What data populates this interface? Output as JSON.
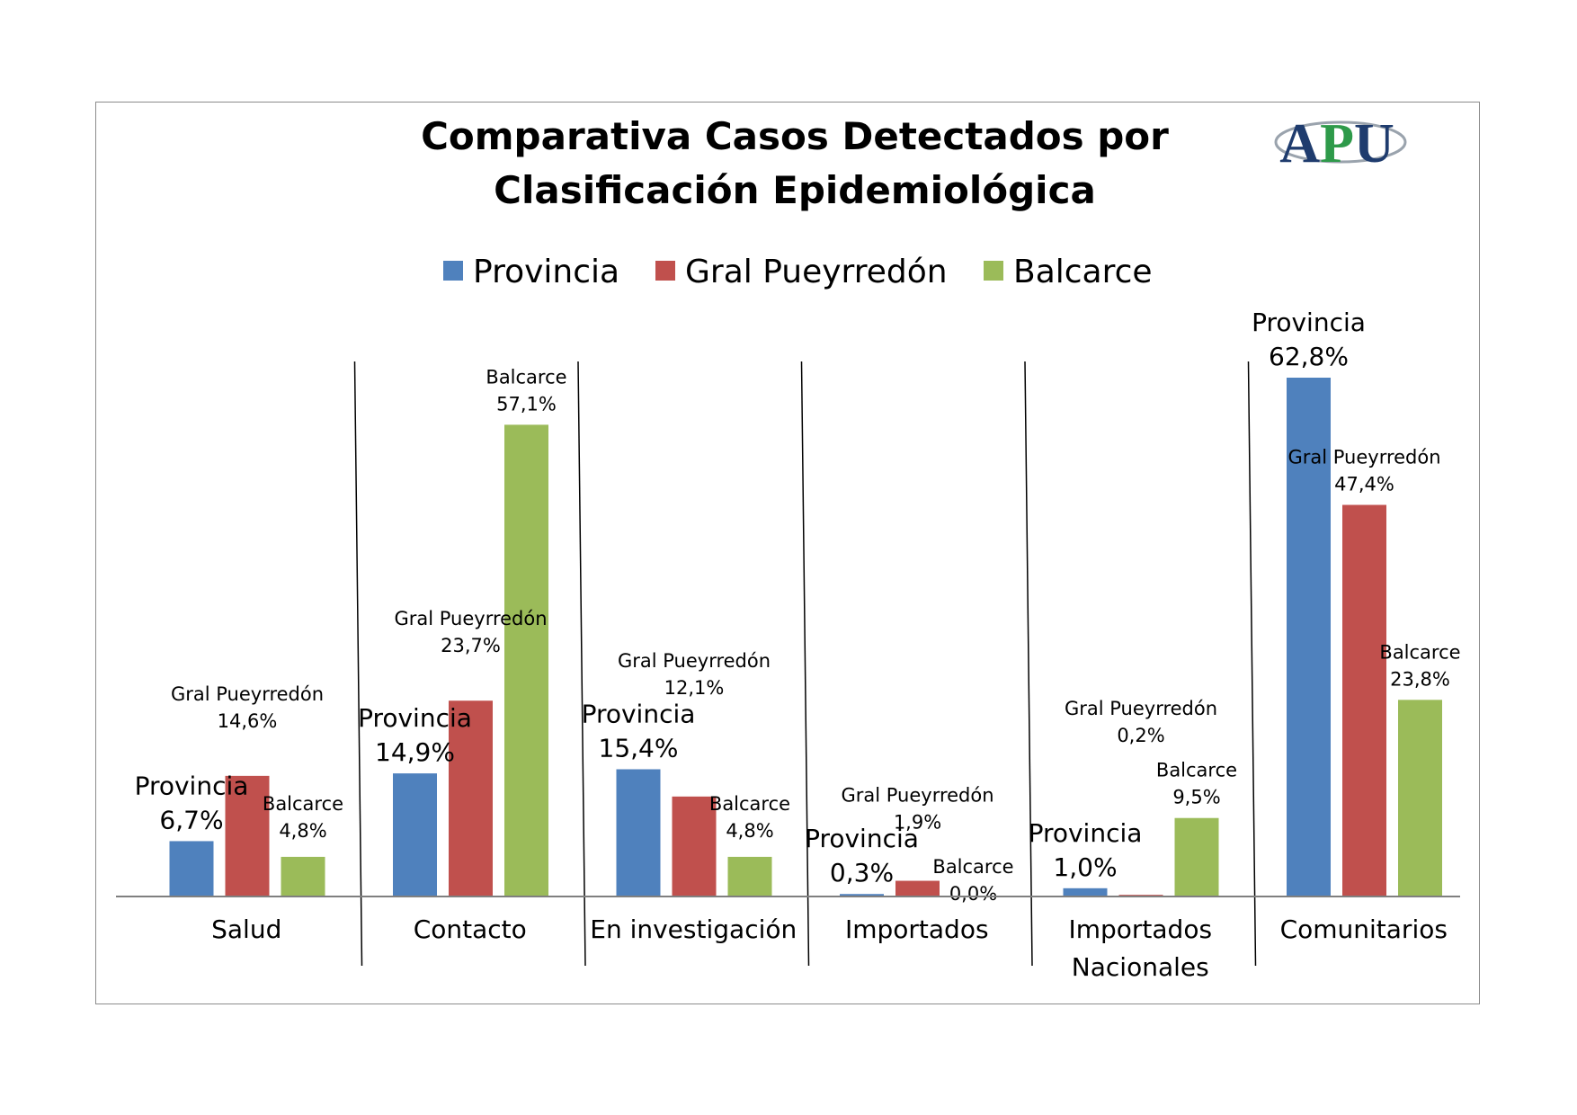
{
  "chart_data": {
    "type": "bar",
    "title": [
      "Comparativa Casos Detectados por",
      "Clasificación Epidemiológica"
    ],
    "categories": [
      [
        "Salud"
      ],
      [
        "Contacto"
      ],
      [
        "En investigación"
      ],
      [
        "Importados"
      ],
      [
        "Importados",
        "Nacionales"
      ],
      [
        "Comunitarios"
      ]
    ],
    "series": [
      {
        "name": "Provincia",
        "color": "#4F81BD",
        "values": [
          6.7,
          14.9,
          15.4,
          0.3,
          1.0,
          62.8
        ],
        "labels": [
          "6,7%",
          "14,9%",
          "15,4%",
          "0,3%",
          "1,0%",
          "62,8%"
        ]
      },
      {
        "name": "Gral Pueyrredón",
        "color": "#C0504D",
        "values": [
          14.6,
          23.7,
          12.1,
          1.9,
          0.2,
          47.4
        ],
        "labels": [
          "14,6%",
          "23,7%",
          "12,1%",
          "1,9%",
          "0,2%",
          "47,4%"
        ]
      },
      {
        "name": "Balcarce",
        "color": "#9BBB59",
        "values": [
          4.8,
          57.1,
          4.8,
          0.0,
          9.5,
          23.8
        ],
        "labels": [
          "4,8%",
          "57,1%",
          "4,8%",
          "0,0%",
          "9,5%",
          "23,8%"
        ]
      }
    ],
    "legend_position": "top",
    "grid": false
  },
  "logo": {
    "text": "APU",
    "colors": [
      "#1F3C6E",
      "#2E9A4A",
      "#1F3C6E"
    ]
  }
}
